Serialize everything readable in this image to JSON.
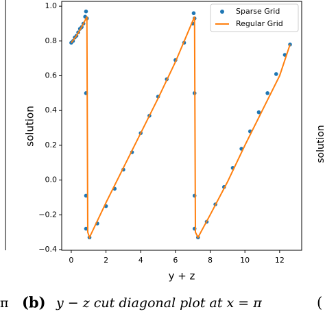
{
  "chart_data": {
    "type": "scatter-line",
    "xlabel": "y + z",
    "ylabel": "solution",
    "xlim": [
      -0.55,
      13.27
    ],
    "ylim": [
      -0.404,
      1.028
    ],
    "xticks": [
      0,
      2,
      4,
      6,
      8,
      10,
      12
    ],
    "yticks": [
      {
        "value": -0.4,
        "label": "−0.4"
      },
      {
        "value": -0.2,
        "label": "−0.2"
      },
      {
        "value": 0,
        "label": "0.0"
      },
      {
        "value": 0.2,
        "label": "0.2"
      },
      {
        "value": 0.4,
        "label": "0.4"
      },
      {
        "value": 0.6,
        "label": "0.6"
      },
      {
        "value": 0.8,
        "label": "0.8"
      },
      {
        "value": 1,
        "label": "1.0"
      }
    ],
    "legend": "upper right",
    "series": [
      {
        "name": "Sparse Grid",
        "kind": "scatter",
        "color": "#1f77b4",
        "x": [
          0,
          0.1,
          0.2,
          0.3,
          0.4,
          0.5,
          0.6,
          0.7,
          0.8,
          0.85,
          0.85,
          0.85,
          0.85,
          0.9,
          1.05,
          1.5,
          2,
          2.5,
          3,
          3.5,
          4,
          4.5,
          5,
          5.5,
          6,
          6.5,
          7.0,
          7.05,
          7.1,
          7.1,
          7.1,
          7.1,
          7.3,
          7.8,
          8.3,
          8.8,
          9.3,
          9.8,
          10.3,
          10.8,
          11.3,
          11.8,
          12.3,
          12.6
        ],
        "values": [
          0.79,
          0.8,
          0.82,
          0.83,
          0.85,
          0.87,
          0.88,
          0.9,
          0.94,
          0.97,
          0.5,
          -0.09,
          -0.28,
          0.93,
          -0.33,
          -0.25,
          -0.15,
          -0.05,
          0.06,
          0.16,
          0.27,
          0.37,
          0.48,
          0.58,
          0.69,
          0.79,
          0.9,
          0.96,
          0.5,
          -0.09,
          -0.28,
          0.93,
          -0.33,
          -0.24,
          -0.14,
          -0.04,
          0.07,
          0.18,
          0.28,
          0.39,
          0.5,
          0.61,
          0.72,
          0.78
        ]
      },
      {
        "name": "Regular Grid",
        "kind": "line",
        "color": "#ff7f0e",
        "x": [
          0,
          0.3,
          0.6,
          0.9,
          0.95,
          1.05,
          2,
          3,
          4,
          5,
          6,
          7.1,
          7.15,
          7.3,
          8,
          9,
          10,
          11,
          12,
          12.6
        ],
        "values": [
          0.79,
          0.83,
          0.88,
          0.94,
          -0.3,
          -0.33,
          -0.13,
          0.07,
          0.27,
          0.47,
          0.68,
          0.94,
          -0.3,
          -0.33,
          -0.2,
          -0.01,
          0.2,
          0.4,
          0.6,
          0.78
        ]
      }
    ]
  },
  "caption": {
    "label": "(b)",
    "text": "y − z cut diagonal plot at x = π"
  },
  "fragments": {
    "left": "π",
    "right": "(",
    "right_axis": "solution"
  }
}
